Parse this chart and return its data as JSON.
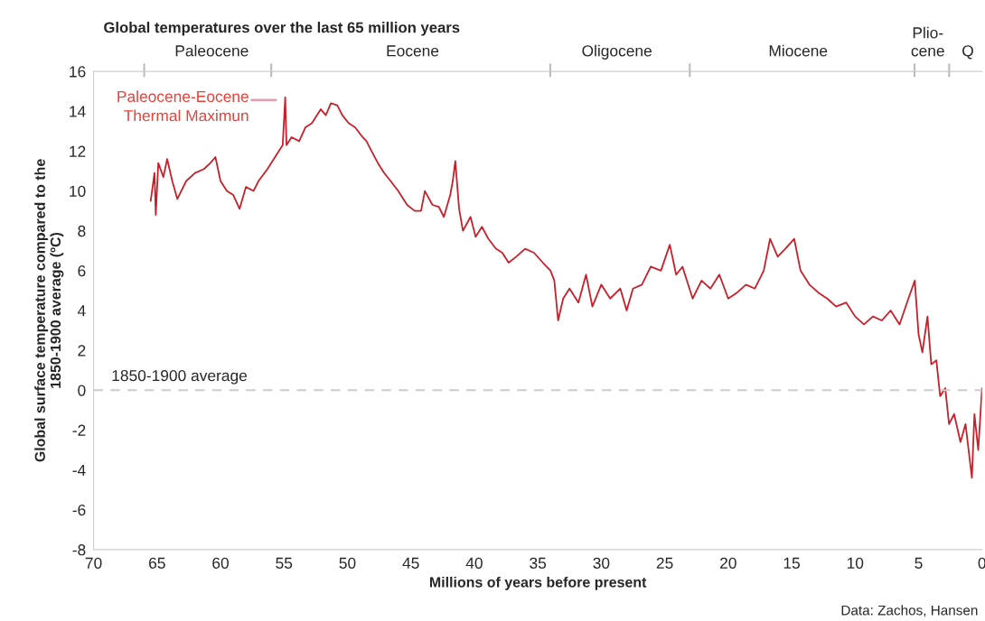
{
  "chart_data": {
    "type": "line",
    "title": "Global temperatures over the last 65 million years",
    "xlabel": "Millions of years before present",
    "ylabel": "Global surface temperature compared to the\n1850-1900 average (ºC)",
    "xlim": [
      70,
      0
    ],
    "xticks": [
      70,
      65,
      60,
      55,
      50,
      45,
      40,
      35,
      30,
      25,
      20,
      15,
      10,
      5,
      0
    ],
    "ylim": [
      -8,
      16
    ],
    "yticks": [
      -8,
      -6,
      -4,
      -2,
      0,
      2,
      4,
      6,
      8,
      10,
      12,
      14,
      16
    ],
    "grid": false,
    "marker": "none",
    "line_style": "solid",
    "series": [
      {
        "color": "#c8202a",
        "x": [
          65.5,
          65.2,
          65.1,
          64.9,
          64.5,
          64.2,
          63.8,
          63.4,
          62.7,
          62.0,
          61.3,
          60.8,
          60.4,
          60.0,
          59.5,
          59.0,
          58.5,
          58.0,
          57.4,
          57.0,
          56.3,
          55.6,
          55.1,
          54.9,
          54.8,
          54.4,
          53.8,
          53.3,
          52.8,
          52.1,
          51.7,
          51.3,
          50.8,
          50.4,
          49.9,
          49.4,
          48.8,
          48.5,
          48.1,
          47.6,
          47.1,
          46.6,
          46.0,
          45.3,
          44.7,
          44.2,
          43.9,
          43.3,
          42.8,
          42.4,
          41.9,
          41.7,
          41.5,
          41.2,
          40.9,
          40.3,
          39.9,
          39.4,
          38.9,
          38.3,
          37.8,
          37.3,
          36.7,
          36.0,
          35.3,
          34.6,
          34.0,
          33.7,
          33.4,
          33.0,
          32.5,
          31.8,
          31.2,
          30.7,
          30.0,
          29.3,
          28.5,
          28.0,
          27.5,
          26.8,
          26.1,
          25.3,
          24.6,
          24.1,
          23.6,
          22.8,
          22.1,
          21.4,
          20.7,
          20.0,
          19.3,
          18.6,
          17.9,
          17.2,
          16.7,
          16.1,
          15.5,
          14.8,
          14.3,
          13.6,
          12.9,
          12.2,
          11.5,
          10.7,
          10.0,
          9.3,
          8.6,
          7.9,
          7.2,
          6.5,
          5.8,
          5.3,
          5.0,
          4.7,
          4.3,
          4.0,
          3.6,
          3.3,
          2.9,
          2.6,
          2.2,
          1.7,
          1.3,
          0.8,
          0.6,
          0.3,
          0.0
        ],
        "values": [
          9.5,
          10.9,
          8.8,
          11.4,
          10.7,
          11.6,
          10.5,
          9.6,
          10.5,
          10.9,
          11.1,
          11.4,
          11.7,
          10.5,
          10.0,
          9.8,
          9.1,
          10.2,
          10.0,
          10.5,
          11.1,
          11.8,
          12.3,
          14.7,
          12.3,
          12.7,
          12.5,
          13.2,
          13.4,
          14.1,
          13.8,
          14.4,
          14.3,
          13.8,
          13.4,
          13.2,
          12.7,
          12.5,
          12.0,
          11.4,
          10.9,
          10.5,
          10.0,
          9.3,
          9.0,
          9.0,
          10.0,
          9.3,
          9.2,
          8.7,
          9.8,
          10.5,
          11.5,
          9.1,
          8.0,
          8.7,
          7.7,
          8.2,
          7.6,
          7.1,
          6.9,
          6.4,
          6.7,
          7.1,
          6.9,
          6.4,
          6.0,
          5.5,
          3.5,
          4.6,
          5.1,
          4.4,
          5.8,
          4.2,
          5.3,
          4.6,
          5.1,
          4.0,
          5.1,
          5.3,
          6.2,
          6.0,
          7.3,
          5.8,
          6.2,
          4.6,
          5.5,
          5.1,
          5.8,
          4.6,
          4.9,
          5.3,
          5.1,
          6.0,
          7.6,
          6.7,
          7.1,
          7.6,
          6.0,
          5.3,
          4.9,
          4.6,
          4.2,
          4.4,
          3.7,
          3.3,
          3.7,
          3.5,
          4.0,
          3.3,
          4.6,
          5.5,
          2.8,
          1.9,
          3.7,
          1.3,
          1.5,
          -0.3,
          0.1,
          -1.7,
          -1.2,
          -2.6,
          -1.7,
          -4.4,
          -1.2,
          -3.0,
          0.1
        ]
      }
    ],
    "ref_lines": [
      {
        "axis": "y",
        "value": 0,
        "label": "1850-1900 average",
        "color": "#cccccc",
        "line_style": "dashed"
      }
    ],
    "annotations": [
      "Paleocene-Eocene\nThermal Maximun",
      "Paleocene",
      "Eocene",
      "Oligocene",
      "Miocene",
      "Plio-\ncene",
      "Q",
      "Data: Zachos, Hansen"
    ]
  }
}
